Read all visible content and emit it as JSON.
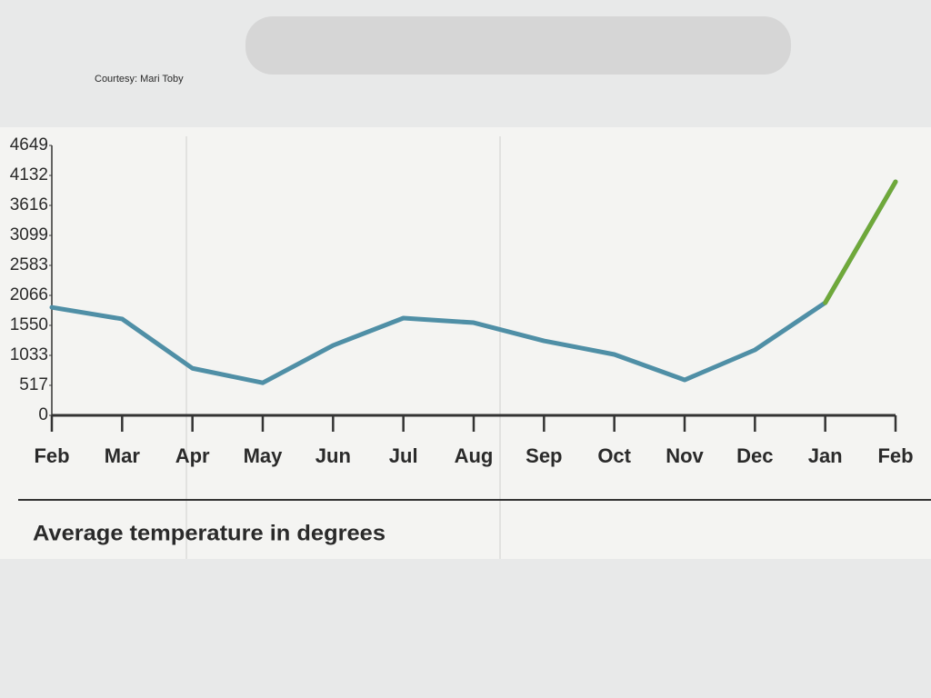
{
  "chart_data": {
    "type": "line",
    "source": "Courtesy: Mari Toby",
    "caption": "Average temperature in degrees",
    "categories": [
      "Feb",
      "Mar",
      "Apr",
      "May",
      "Jun",
      "Jul",
      "Aug",
      "Sep",
      "Oct",
      "Nov",
      "Dec",
      "Jan",
      "Feb"
    ],
    "series": [
      {
        "color": "#4f8fa6",
        "last_segment_color": "#6fa83a",
        "values": [
          1860,
          1660,
          810,
          560,
          1205,
          1675,
          1596,
          1283,
          1049,
          610,
          1127,
          1940,
          4022
        ]
      }
    ],
    "ylim": [
      0,
      4649
    ],
    "yticks": [
      0,
      517,
      1033,
      1550,
      2066,
      2583,
      3099,
      3616,
      4132,
      4649
    ],
    "grid": false
  }
}
